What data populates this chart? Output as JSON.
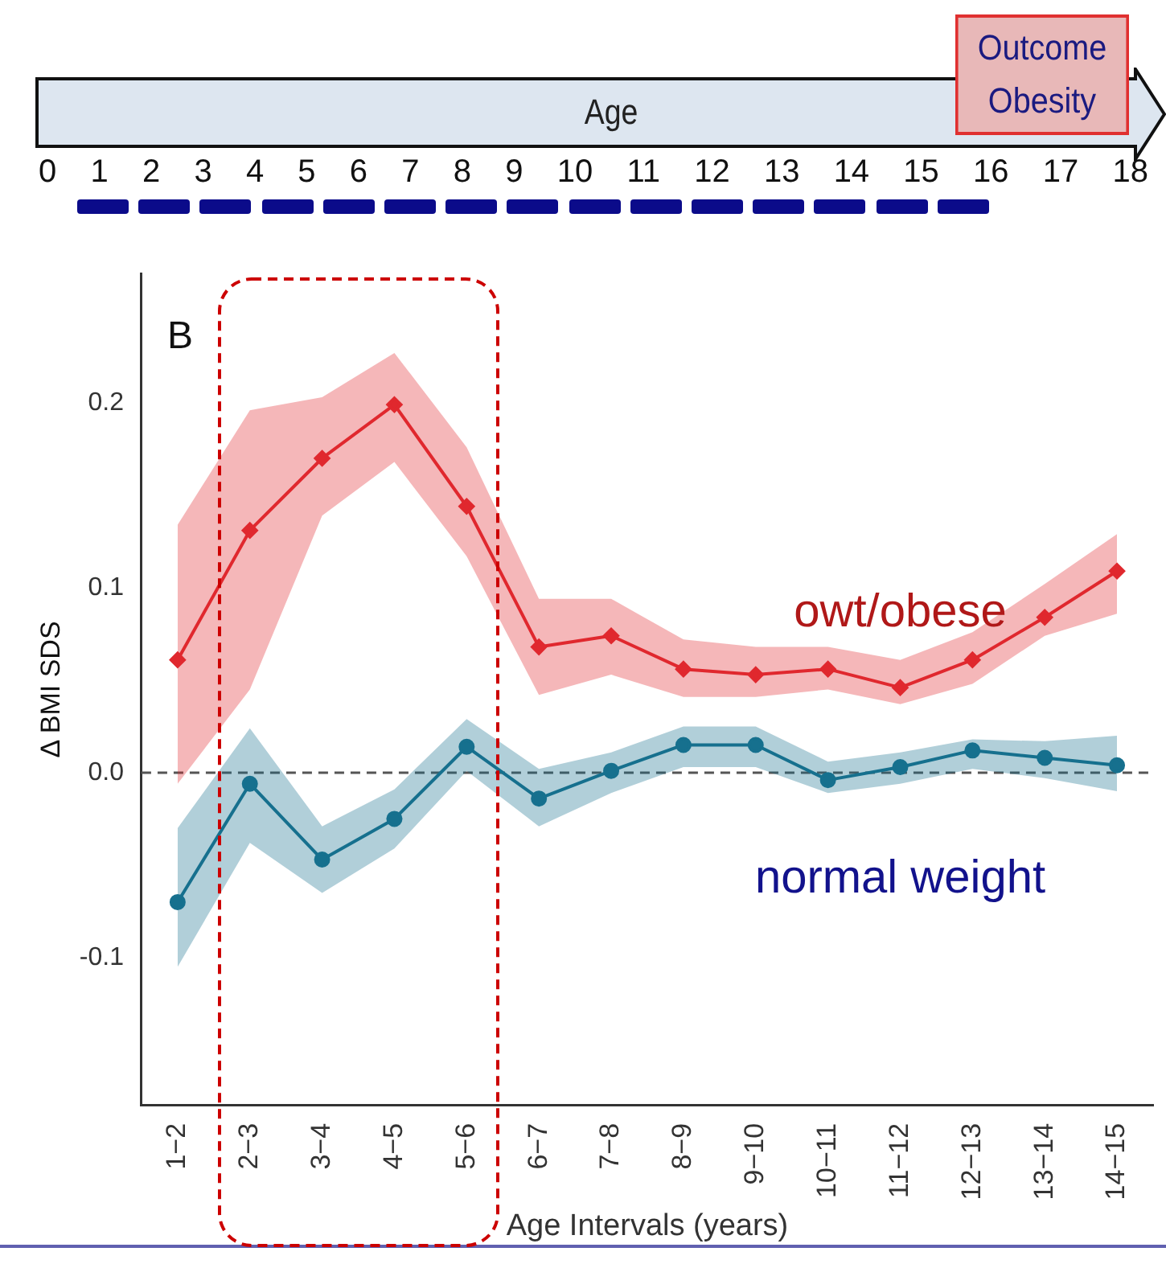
{
  "chart_data": {
    "type": "line",
    "xlabel": "Age Intervals (years)",
    "ylabel": "Δ BMI SDS",
    "categories": [
      "1−2",
      "2−3",
      "3−4",
      "4−5",
      "5−6",
      "6−7",
      "7−8",
      "8−9",
      "9−10",
      "10−11",
      "11−12",
      "12−13",
      "13−14",
      "14−15"
    ],
    "series": [
      {
        "name": "owt/obese",
        "color": "#e0282e",
        "marker": "diamond",
        "values": [
          0.061,
          0.131,
          0.17,
          0.199,
          0.144,
          0.068,
          0.074,
          0.056,
          0.053,
          0.056,
          0.046,
          0.061,
          0.084,
          0.109
        ],
        "lower": [
          -0.006,
          0.045,
          0.139,
          0.168,
          0.117,
          0.042,
          0.053,
          0.041,
          0.041,
          0.045,
          0.037,
          0.048,
          0.074,
          0.086
        ],
        "upper": [
          0.134,
          0.196,
          0.203,
          0.227,
          0.176,
          0.094,
          0.094,
          0.072,
          0.068,
          0.068,
          0.061,
          0.076,
          0.102,
          0.129
        ]
      },
      {
        "name": "normal weight",
        "color": "#16708e",
        "marker": "circle",
        "values": [
          -0.07,
          -0.006,
          -0.047,
          -0.025,
          0.014,
          -0.014,
          0.001,
          0.015,
          0.015,
          -0.004,
          0.003,
          0.012,
          0.008,
          0.004
        ],
        "lower": [
          -0.105,
          -0.038,
          -0.065,
          -0.041,
          0.001,
          -0.029,
          -0.011,
          0.003,
          0.003,
          -0.011,
          -0.006,
          0.002,
          -0.003,
          -0.01
        ],
        "upper": [
          -0.03,
          0.024,
          -0.029,
          -0.009,
          0.029,
          0.002,
          0.011,
          0.025,
          0.025,
          0.006,
          0.011,
          0.018,
          0.017,
          0.02
        ]
      }
    ],
    "ylim": [
      -0.18,
      0.27
    ],
    "yticks": [
      -0.1,
      {
        "value": 0,
        "label": "0.0"
      },
      0.1,
      0.2
    ],
    "ref_lines": [
      {
        "axis": "y",
        "value": 0,
        "color": "#555555",
        "line_style": "dashed"
      }
    ],
    "annotations": [
      "B",
      "Age",
      "Outcome Obesity",
      "0 1 2 3 4 5 6 7 8 9 10 11 12 13 14 15 16 17 18"
    ],
    "grid": false,
    "legend": false,
    "line_style": "solid"
  }
}
